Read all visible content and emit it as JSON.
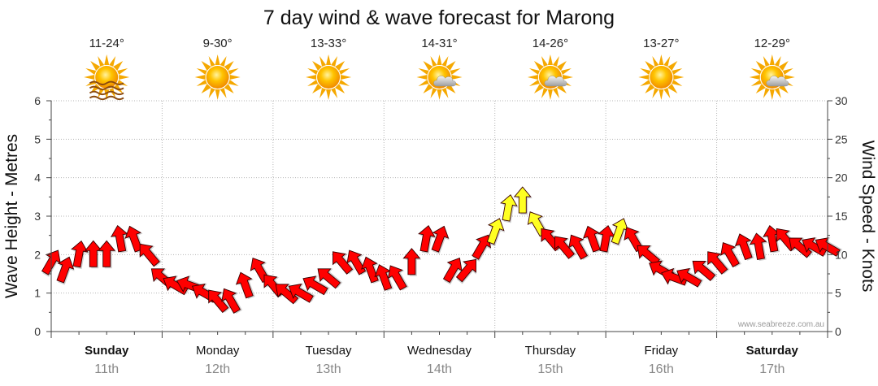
{
  "chart_data": {
    "type": "line",
    "title": "7 day wind & wave forecast for Marong",
    "ylabel_left": "Wave Height - Metres",
    "ylabel_right": "Wind Speed - Knots",
    "ylim_left": [
      0,
      6
    ],
    "ylim_right": [
      0,
      30
    ],
    "yticks_left": [
      "0",
      "1",
      "2",
      "3",
      "4",
      "5",
      "6"
    ],
    "yticks_right": [
      "0",
      "5",
      "10",
      "15",
      "20",
      "25",
      "30"
    ],
    "grid": true,
    "watermark": "www.seabreeze.com.au",
    "days": [
      {
        "name": "Sunday",
        "date": "11th",
        "temp": "11-24°",
        "icon": "sun-haze-icon",
        "bold": true
      },
      {
        "name": "Monday",
        "date": "12th",
        "temp": "9-30°",
        "icon": "sun-icon",
        "bold": false
      },
      {
        "name": "Tuesday",
        "date": "13th",
        "temp": "13-33°",
        "icon": "sun-icon",
        "bold": false
      },
      {
        "name": "Wednesday",
        "date": "14th",
        "temp": "14-31°",
        "icon": "sun-cloud-icon",
        "bold": false
      },
      {
        "name": "Thursday",
        "date": "15th",
        "temp": "14-26°",
        "icon": "sun-cloud-icon",
        "bold": false
      },
      {
        "name": "Friday",
        "date": "16th",
        "temp": "13-27°",
        "icon": "sun-icon",
        "bold": false
      },
      {
        "name": "Saturday",
        "date": "17th",
        "temp": "12-29°",
        "icon": "sun-cloud-icon",
        "bold": true
      }
    ],
    "wind_colors": {
      "strong": "#ff0000",
      "moderate": "#ffff22"
    },
    "wind_series": {
      "name": "Wind speed (knots)",
      "x_days": [
        0.0,
        0.12,
        0.25,
        0.38,
        0.5,
        0.62,
        0.75,
        0.88,
        1.0,
        1.12,
        1.25,
        1.38,
        1.5,
        1.62,
        1.75,
        1.88,
        2.0,
        2.12,
        2.25,
        2.38,
        2.5,
        2.62,
        2.75,
        2.88,
        3.0,
        3.12,
        3.25,
        3.38,
        3.5,
        3.62,
        3.75,
        3.88,
        4.0,
        4.12,
        4.25,
        4.38,
        4.5,
        4.62,
        4.75,
        4.88,
        5.0,
        5.12,
        5.25,
        5.38,
        5.5,
        5.62,
        5.75,
        5.88,
        6.0,
        6.12,
        6.25,
        6.38,
        6.5,
        6.62,
        6.75,
        6.88,
        7.0
      ],
      "knots": [
        9,
        8,
        10,
        10,
        10,
        12,
        12,
        10,
        7,
        6,
        6,
        5,
        4,
        4,
        6,
        8,
        6,
        5,
        5,
        6,
        7,
        9,
        9,
        8,
        7,
        7,
        9,
        12,
        12,
        8,
        8,
        11,
        13,
        16,
        17,
        14,
        12,
        11,
        11,
        12,
        12,
        13,
        12,
        10,
        8,
        7,
        7,
        8,
        9,
        10,
        11,
        11,
        12,
        12,
        11,
        11,
        11
      ],
      "direction_deg": [
        30,
        20,
        10,
        0,
        0,
        350,
        340,
        320,
        310,
        300,
        290,
        300,
        320,
        330,
        340,
        330,
        320,
        310,
        300,
        300,
        310,
        320,
        330,
        340,
        340,
        330,
        0,
        10,
        20,
        30,
        40,
        30,
        20,
        10,
        0,
        330,
        320,
        320,
        330,
        340,
        10,
        20,
        330,
        310,
        300,
        290,
        300,
        310,
        320,
        330,
        340,
        350,
        350,
        320,
        310,
        300,
        300
      ]
    }
  }
}
